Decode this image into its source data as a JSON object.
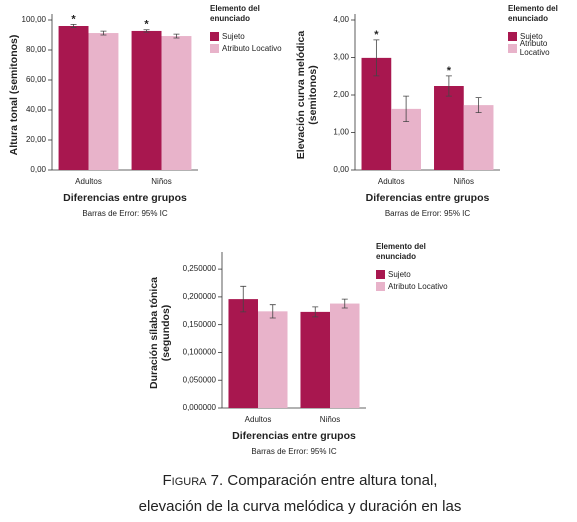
{
  "chart_data": [
    {
      "type": "bar",
      "ylabel": "Altura tonal (semitonos)",
      "xlabel": "Diferencias entre grupos",
      "note": "Barras de Error: 95% IC",
      "legend_title": "Elemento del enunciado",
      "categories": [
        "Adultos",
        "Niños"
      ],
      "series": [
        {
          "name": "Sujeto",
          "color": "#a8174f",
          "values": [
            96,
            92.7
          ],
          "errors": [
            1.1,
            0.8
          ],
          "markers": [
            "*",
            "*"
          ]
        },
        {
          "name": "Atributo Locativo",
          "color": "#e8b3ca",
          "values": [
            91.3,
            89.3
          ],
          "errors": [
            1.3,
            1.3
          ]
        }
      ],
      "ylim": [
        0,
        100
      ],
      "yticks": [
        {
          "value": 0,
          "label": "0,00"
        },
        {
          "value": 20,
          "label": "20,00"
        },
        {
          "value": 40,
          "label": "40,00"
        },
        {
          "value": 60,
          "label": "60,00"
        },
        {
          "value": 80,
          "label": "80,00"
        },
        {
          "value": 100,
          "label": "100,00"
        }
      ]
    },
    {
      "type": "bar",
      "ylabel": "Elevación curva melódica (semitonos)",
      "xlabel": "Diferencias entre grupos",
      "note": "Barras de Error: 95% IC",
      "legend_title": "Elemento del enunciado",
      "categories": [
        "Adultos",
        "Niños"
      ],
      "series": [
        {
          "name": "Sujeto",
          "color": "#a8174f",
          "values": [
            2.99,
            2.24
          ],
          "errors": [
            0.48,
            0.27
          ],
          "markers": [
            "*",
            "*"
          ]
        },
        {
          "name": "Atributo Locativo",
          "color": "#e8b3ca",
          "values": [
            1.63,
            1.73
          ],
          "errors": [
            0.34,
            0.2
          ]
        }
      ],
      "ylim": [
        0,
        4
      ],
      "yticks": [
        {
          "value": 0,
          "label": "0,00"
        },
        {
          "value": 1,
          "label": "1,00"
        },
        {
          "value": 2,
          "label": "2,00"
        },
        {
          "value": 3,
          "label": "3,00"
        },
        {
          "value": 4,
          "label": "4,00"
        }
      ]
    },
    {
      "type": "bar",
      "ylabel": "Duración sílaba tónica (segundos)",
      "xlabel": "Diferencias entre grupos",
      "note": "Barras de Error: 95% IC",
      "legend_title": "Elemento del enunciado",
      "categories": [
        "Adultos",
        "Niños"
      ],
      "series": [
        {
          "name": "Sujeto",
          "color": "#a8174f",
          "values": [
            0.196,
            0.173
          ],
          "errors": [
            0.023,
            0.009
          ]
        },
        {
          "name": "Atributo Locativo",
          "color": "#e8b3ca",
          "values": [
            0.174,
            0.188
          ],
          "errors": [
            0.012,
            0.008
          ]
        }
      ],
      "ylim": [
        0,
        0.27
      ],
      "yticks": [
        {
          "value": 0,
          "label": "0,000000"
        },
        {
          "value": 0.05,
          "label": "0,050000"
        },
        {
          "value": 0.1,
          "label": "0,100000"
        },
        {
          "value": 0.15,
          "label": "0,150000"
        },
        {
          "value": 0.2,
          "label": "0,200000"
        },
        {
          "value": 0.25,
          "label": "0,250000"
        }
      ]
    }
  ],
  "caption": {
    "label": "Figura 7.",
    "text": "Comparación entre altura tonal, elevación de la curva melódica y duración en las respuestas dadas por adultos"
  }
}
